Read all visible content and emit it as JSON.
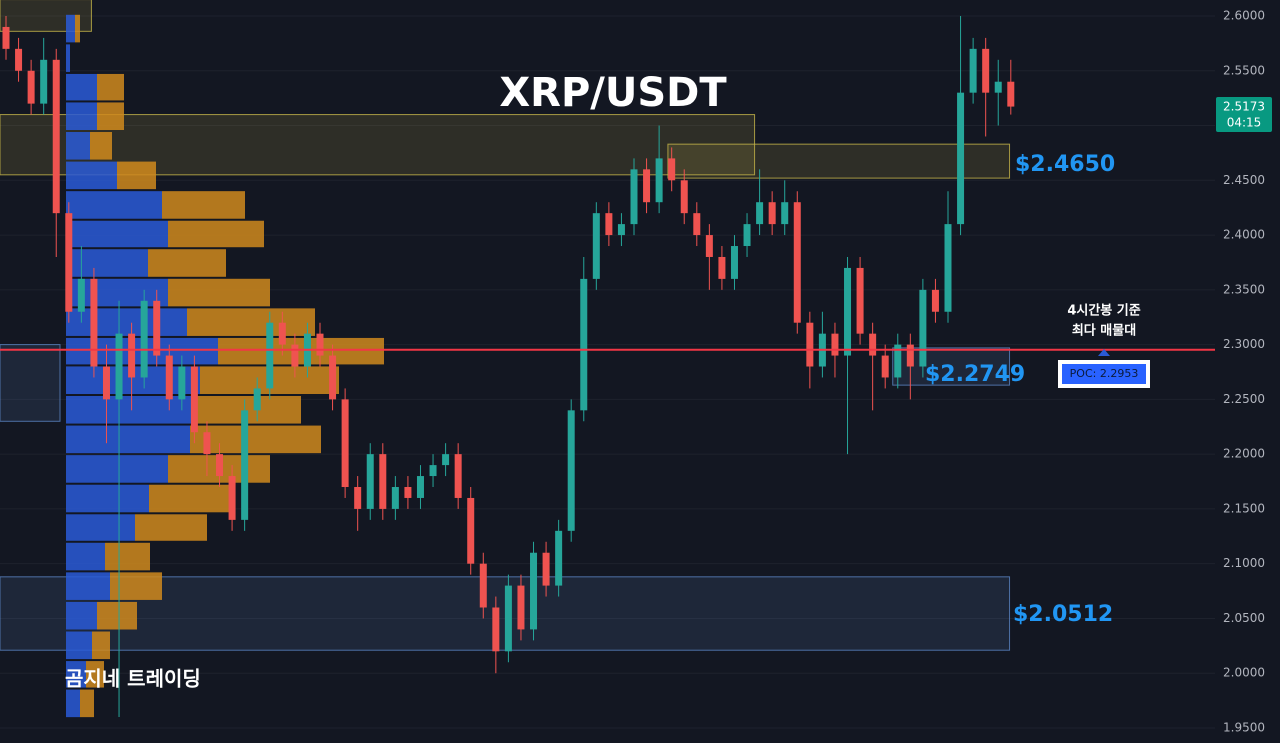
{
  "chart_data": {
    "type": "candlestick",
    "title": "XRP/USDT",
    "ylim": [
      1.9363,
      2.6146
    ],
    "yticks": [
      {
        "value": 2.6,
        "label": "2.6000"
      },
      {
        "value": 2.55,
        "label": "2.5500"
      },
      {
        "value": 2.5,
        "label": "2.5000"
      },
      {
        "value": 2.45,
        "label": "2.4500"
      },
      {
        "value": 2.4,
        "label": "2.4000"
      },
      {
        "value": 2.35,
        "label": "2.3500"
      },
      {
        "value": 2.3,
        "label": "2.3000"
      },
      {
        "value": 2.25,
        "label": "2.2500"
      },
      {
        "value": 2.2,
        "label": "2.2000"
      },
      {
        "value": 2.15,
        "label": "2.1500"
      },
      {
        "value": 2.1,
        "label": "2.1000"
      },
      {
        "value": 2.05,
        "label": "2.0500"
      },
      {
        "value": 2.0,
        "label": "2.0000"
      },
      {
        "value": 1.95,
        "label": "1.9500"
      }
    ],
    "grid": true,
    "up_color": "#26a69a",
    "down_color": "#ef5350",
    "series": [
      {
        "open": [
          2.59,
          2.57,
          2.55,
          2.52,
          2.56,
          2.42,
          2.33,
          2.36,
          2.28,
          2.25,
          2.31,
          2.27,
          2.34,
          2.29,
          2.25,
          2.28,
          2.22,
          2.2,
          2.18,
          2.14,
          2.24,
          2.26,
          2.32,
          2.3,
          2.28,
          2.31,
          2.29,
          2.25,
          2.17,
          2.15,
          2.2,
          2.15,
          2.17,
          2.16,
          2.18,
          2.19,
          2.2,
          2.16,
          2.1,
          2.06,
          2.02,
          2.08,
          2.04,
          2.11,
          2.08,
          2.13,
          2.24,
          2.36,
          2.42,
          2.4,
          2.41,
          2.46,
          2.43,
          2.47,
          2.45,
          2.42,
          2.4,
          2.38,
          2.36,
          2.39,
          2.41,
          2.43,
          2.41,
          2.43,
          2.32,
          2.28,
          2.31,
          2.29,
          2.37,
          2.31,
          2.29,
          2.27,
          2.3,
          2.28,
          2.35,
          2.33,
          2.41,
          2.53,
          2.57,
          2.53,
          2.54
        ],
        "high": [
          2.6,
          2.58,
          2.56,
          2.58,
          2.57,
          2.43,
          2.39,
          2.37,
          2.3,
          2.34,
          2.32,
          2.35,
          2.35,
          2.3,
          2.29,
          2.29,
          2.23,
          2.21,
          2.19,
          2.25,
          2.27,
          2.33,
          2.33,
          2.31,
          2.32,
          2.32,
          2.3,
          2.26,
          2.18,
          2.21,
          2.21,
          2.18,
          2.18,
          2.19,
          2.2,
          2.21,
          2.21,
          2.17,
          2.11,
          2.07,
          2.09,
          2.09,
          2.12,
          2.12,
          2.14,
          2.25,
          2.38,
          2.43,
          2.43,
          2.42,
          2.47,
          2.47,
          2.5,
          2.48,
          2.46,
          2.43,
          2.41,
          2.39,
          2.4,
          2.42,
          2.46,
          2.44,
          2.45,
          2.44,
          2.33,
          2.33,
          2.32,
          2.38,
          2.38,
          2.32,
          2.3,
          2.31,
          2.31,
          2.36,
          2.36,
          2.44,
          2.6,
          2.58,
          2.58,
          2.56,
          2.56
        ],
        "low": [
          2.56,
          2.54,
          2.51,
          2.51,
          2.38,
          2.32,
          2.32,
          2.27,
          2.21,
          1.96,
          2.24,
          2.26,
          2.28,
          2.24,
          2.24,
          2.21,
          2.18,
          2.17,
          2.13,
          2.13,
          2.23,
          2.25,
          2.29,
          2.27,
          2.27,
          2.28,
          2.24,
          2.16,
          2.13,
          2.14,
          2.14,
          2.14,
          2.15,
          2.15,
          2.17,
          2.18,
          2.15,
          2.09,
          2.05,
          2.0,
          2.01,
          2.03,
          2.03,
          2.07,
          2.07,
          2.12,
          2.23,
          2.35,
          2.39,
          2.39,
          2.4,
          2.42,
          2.42,
          2.44,
          2.41,
          2.39,
          2.35,
          2.35,
          2.35,
          2.38,
          2.4,
          2.4,
          2.4,
          2.31,
          2.26,
          2.27,
          2.27,
          2.2,
          2.3,
          2.24,
          2.26,
          2.26,
          2.25,
          2.27,
          2.32,
          2.32,
          2.4,
          2.52,
          2.49,
          2.5,
          2.51
        ],
        "close": [
          2.57,
          2.55,
          2.52,
          2.56,
          2.42,
          2.33,
          2.36,
          2.28,
          2.25,
          2.31,
          2.27,
          2.34,
          2.29,
          2.25,
          2.28,
          2.22,
          2.2,
          2.18,
          2.14,
          2.24,
          2.26,
          2.32,
          2.3,
          2.28,
          2.31,
          2.29,
          2.25,
          2.17,
          2.15,
          2.2,
          2.15,
          2.17,
          2.16,
          2.18,
          2.19,
          2.2,
          2.16,
          2.1,
          2.06,
          2.02,
          2.08,
          2.04,
          2.11,
          2.08,
          2.13,
          2.24,
          2.36,
          2.42,
          2.4,
          2.41,
          2.46,
          2.43,
          2.47,
          2.45,
          2.42,
          2.4,
          2.38,
          2.36,
          2.39,
          2.41,
          2.43,
          2.41,
          2.43,
          2.32,
          2.28,
          2.31,
          2.29,
          2.37,
          2.31,
          2.29,
          2.27,
          2.3,
          2.28,
          2.35,
          2.33,
          2.41,
          2.53,
          2.57,
          2.53,
          2.54,
          2.5173
        ]
      }
    ],
    "volume_profile": {
      "bins": [
        2.602,
        2.575,
        2.548,
        2.522,
        2.495,
        2.468,
        2.441,
        2.414,
        2.388,
        2.361,
        2.334,
        2.307,
        2.281,
        2.254,
        2.227,
        2.2,
        2.173,
        2.146,
        2.12,
        2.093,
        2.066,
        2.039,
        2.012,
        1.986,
        1.959
      ],
      "buy": [
        9,
        4,
        31,
        31,
        24,
        51,
        96,
        102,
        82,
        102,
        121,
        152,
        134,
        126,
        124,
        102,
        83,
        69,
        39,
        44,
        31,
        26,
        20,
        14
      ],
      "sell": [
        5,
        0,
        27,
        27,
        22,
        39,
        83,
        96,
        78,
        102,
        128,
        166,
        139,
        109,
        131,
        102,
        81,
        72,
        45,
        52,
        40,
        18,
        18,
        14
      ],
      "buy_color": "#2a5bd7",
      "sell_color": "#d08a1d"
    },
    "zones": [
      {
        "low": 2.586,
        "high": 2.615,
        "start": -0.5,
        "end": 6.8,
        "color": "#c8b84a"
      },
      {
        "low": 2.455,
        "high": 2.51,
        "start": -0.5,
        "end": 59.6,
        "color": "#c8b84a"
      },
      {
        "low": 2.452,
        "high": 2.483,
        "start": 52.7,
        "end": 79.9,
        "color": "#c8b84a"
      },
      {
        "low": 2.021,
        "high": 2.088,
        "start": -0.5,
        "end": 79.9,
        "color": "#5b86c4"
      },
      {
        "low": 2.263,
        "high": 2.297,
        "start": 70.6,
        "end": 79.9,
        "color": "#5b86c4"
      },
      {
        "low": 2.23,
        "high": 2.3,
        "start": -0.5,
        "end": 4.3,
        "color": "#5b86c4"
      }
    ],
    "poc": 2.2953,
    "poc_label": "POC: 2.2953",
    "poc_color": "#f23645",
    "annotations": [
      "$2.4650",
      "$2.2749",
      "$2.0512"
    ],
    "note_lines": [
      "4시간봉 기준",
      "최다 매물대"
    ],
    "watermark": "곰지네 트레이딩",
    "last_price": 2.5173,
    "countdown": "04:15"
  }
}
